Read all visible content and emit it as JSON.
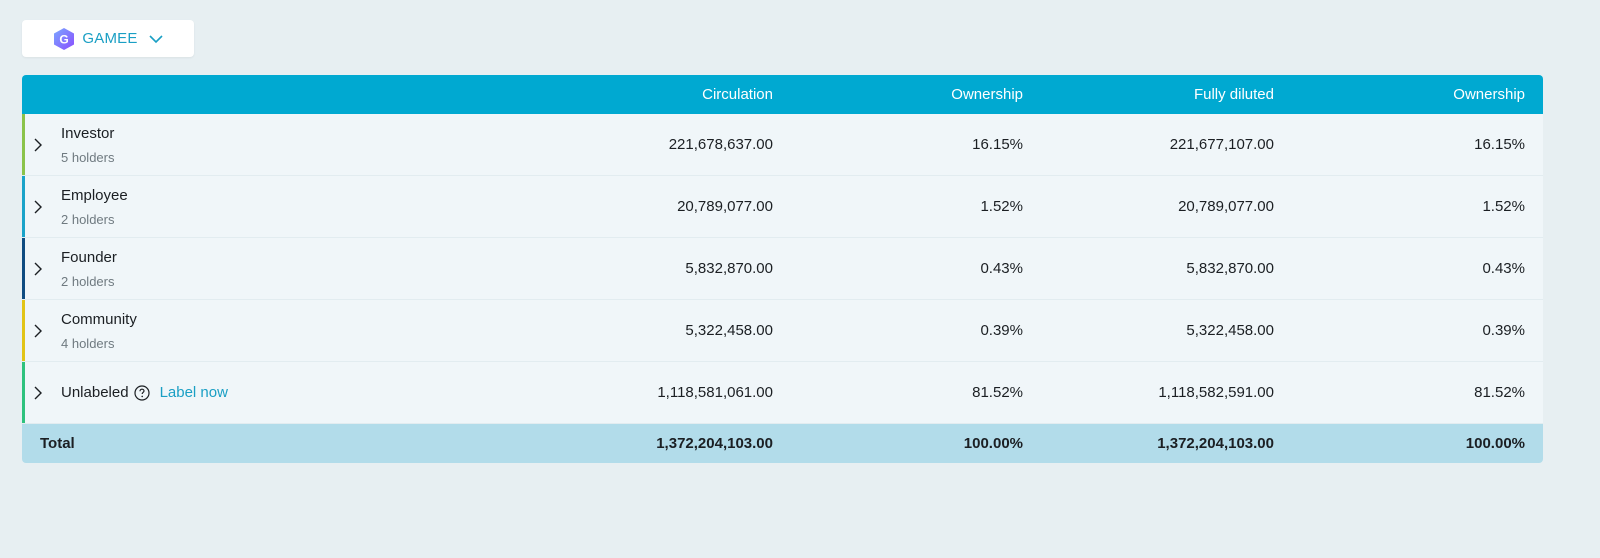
{
  "token": {
    "logo_letter": "G",
    "name": "GAMEE"
  },
  "columns": {
    "circulation": "Circulation",
    "ownership": "Ownership",
    "fully_diluted": "Fully diluted",
    "ownership_fd": "Ownership"
  },
  "rows": [
    {
      "name": "Investor",
      "holders": "5 holders",
      "circulation": "221,678,637.00",
      "ownership": "16.15%",
      "fully_diluted": "221,677,107.00",
      "ownership_fd": "16.15%",
      "accent": "#8bc34a"
    },
    {
      "name": "Employee",
      "holders": "2 holders",
      "circulation": "20,789,077.00",
      "ownership": "1.52%",
      "fully_diluted": "20,789,077.00",
      "ownership_fd": "1.52%",
      "accent": "#1aa3c9"
    },
    {
      "name": "Founder",
      "holders": "2 holders",
      "circulation": "5,832,870.00",
      "ownership": "0.43%",
      "fully_diluted": "5,832,870.00",
      "ownership_fd": "0.43%",
      "accent": "#0f4c81"
    },
    {
      "name": "Community",
      "holders": "4 holders",
      "circulation": "5,322,458.00",
      "ownership": "0.39%",
      "fully_diluted": "5,322,458.00",
      "ownership_fd": "0.39%",
      "accent": "#e2c416"
    },
    {
      "name": "Unlabeled",
      "label_link": "Label now",
      "circulation": "1,118,581,061.00",
      "ownership": "81.52%",
      "fully_diluted": "1,118,582,591.00",
      "ownership_fd": "81.52%",
      "accent": "#2ec27e"
    }
  ],
  "total": {
    "label": "Total",
    "circulation": "1,372,204,103.00",
    "ownership": "100.00%",
    "fully_diluted": "1,372,204,103.00",
    "ownership_fd": "100.00%"
  },
  "icons": {
    "token_logo": "gamee-logo-icon",
    "dropdown": "chevron-down-icon",
    "expand": "chevron-right-icon",
    "help": "question-circle-icon"
  }
}
